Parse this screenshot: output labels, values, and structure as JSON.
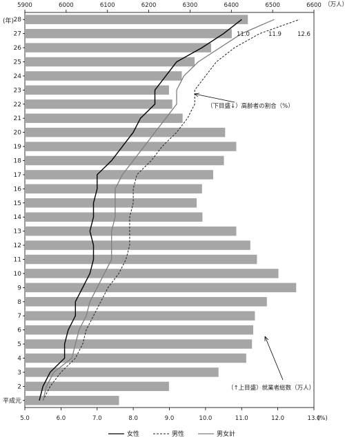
{
  "chart_data": {
    "type": "bar+line",
    "top_axis": {
      "ticks": [
        "5900",
        "6000",
        "6100",
        "6200",
        "6300",
        "6400",
        "6500",
        "6600"
      ],
      "unit": "（万人）",
      "range": [
        5900,
        6600
      ]
    },
    "bottom_axis": {
      "ticks": [
        "5.0",
        "6.0",
        "7.0",
        "8.0",
        "9.0",
        "10.0",
        "11.0",
        "12.0",
        "13.0"
      ],
      "unit": "(%)",
      "range": [
        5.0,
        13.0
      ]
    },
    "y_unit": "(年)",
    "categories": [
      "平成元",
      "2",
      "3",
      "4",
      "5",
      "6",
      "7",
      "8",
      "9",
      "10",
      "11",
      "12",
      "13",
      "14",
      "15",
      "16",
      "17",
      "18",
      "19",
      "20",
      "21",
      "22",
      "23",
      "24",
      "25",
      "26",
      "27",
      "28"
    ],
    "bars": {
      "name": "就業者総数（万人）",
      "values": [
        6128,
        6249,
        6369,
        6436,
        6450,
        6453,
        6457,
        6486,
        6557,
        6514,
        6462,
        6446,
        6412,
        6330,
        6316,
        6329,
        6356,
        6382,
        6412,
        6385,
        6282,
        6257,
        6249,
        6280,
        6311,
        6351,
        6401,
        6440
      ]
    },
    "series": [
      {
        "name": "女性",
        "style": "solid-black",
        "values": [
          5.4,
          5.5,
          5.7,
          6.1,
          6.1,
          6.2,
          6.4,
          6.4,
          6.6,
          6.8,
          6.9,
          6.9,
          6.8,
          6.9,
          6.9,
          7.0,
          7.0,
          7.4,
          7.7,
          8.0,
          8.2,
          8.6,
          8.6,
          8.9,
          9.2,
          9.9,
          10.5,
          11.0
        ]
      },
      {
        "name": "男性",
        "style": "dashed",
        "values": [
          5.5,
          5.7,
          6.0,
          6.4,
          6.6,
          6.7,
          6.9,
          7.1,
          7.3,
          7.6,
          7.8,
          7.9,
          7.9,
          7.9,
          8.0,
          8.0,
          8.1,
          8.5,
          8.8,
          9.2,
          9.5,
          9.7,
          9.7,
          10.0,
          10.3,
          10.8,
          11.5,
          12.6
        ]
      },
      {
        "name": "男女計",
        "style": "solid-gray",
        "values": [
          5.5,
          5.6,
          5.8,
          6.3,
          6.4,
          6.5,
          6.7,
          6.8,
          7.0,
          7.2,
          7.4,
          7.4,
          7.4,
          7.5,
          7.5,
          7.5,
          7.7,
          8.0,
          8.3,
          8.6,
          8.9,
          9.2,
          9.2,
          9.4,
          9.8,
          10.4,
          11.0,
          11.9
        ]
      }
    ],
    "end_labels": [
      "11.0",
      "11.9",
      "12.6"
    ],
    "annotations": {
      "lines_label": "（下目盛↓）高齢者の割合（%）",
      "bars_label": "（↑上目盛）就業者総数（万人）"
    },
    "legend": {
      "position": "bottom-center",
      "items": [
        "女性",
        "男性",
        "男女計"
      ]
    },
    "colors": {
      "bar": "#a6a6a6",
      "women": "#000000",
      "men": "#222222",
      "total": "#7f7f7f"
    }
  }
}
